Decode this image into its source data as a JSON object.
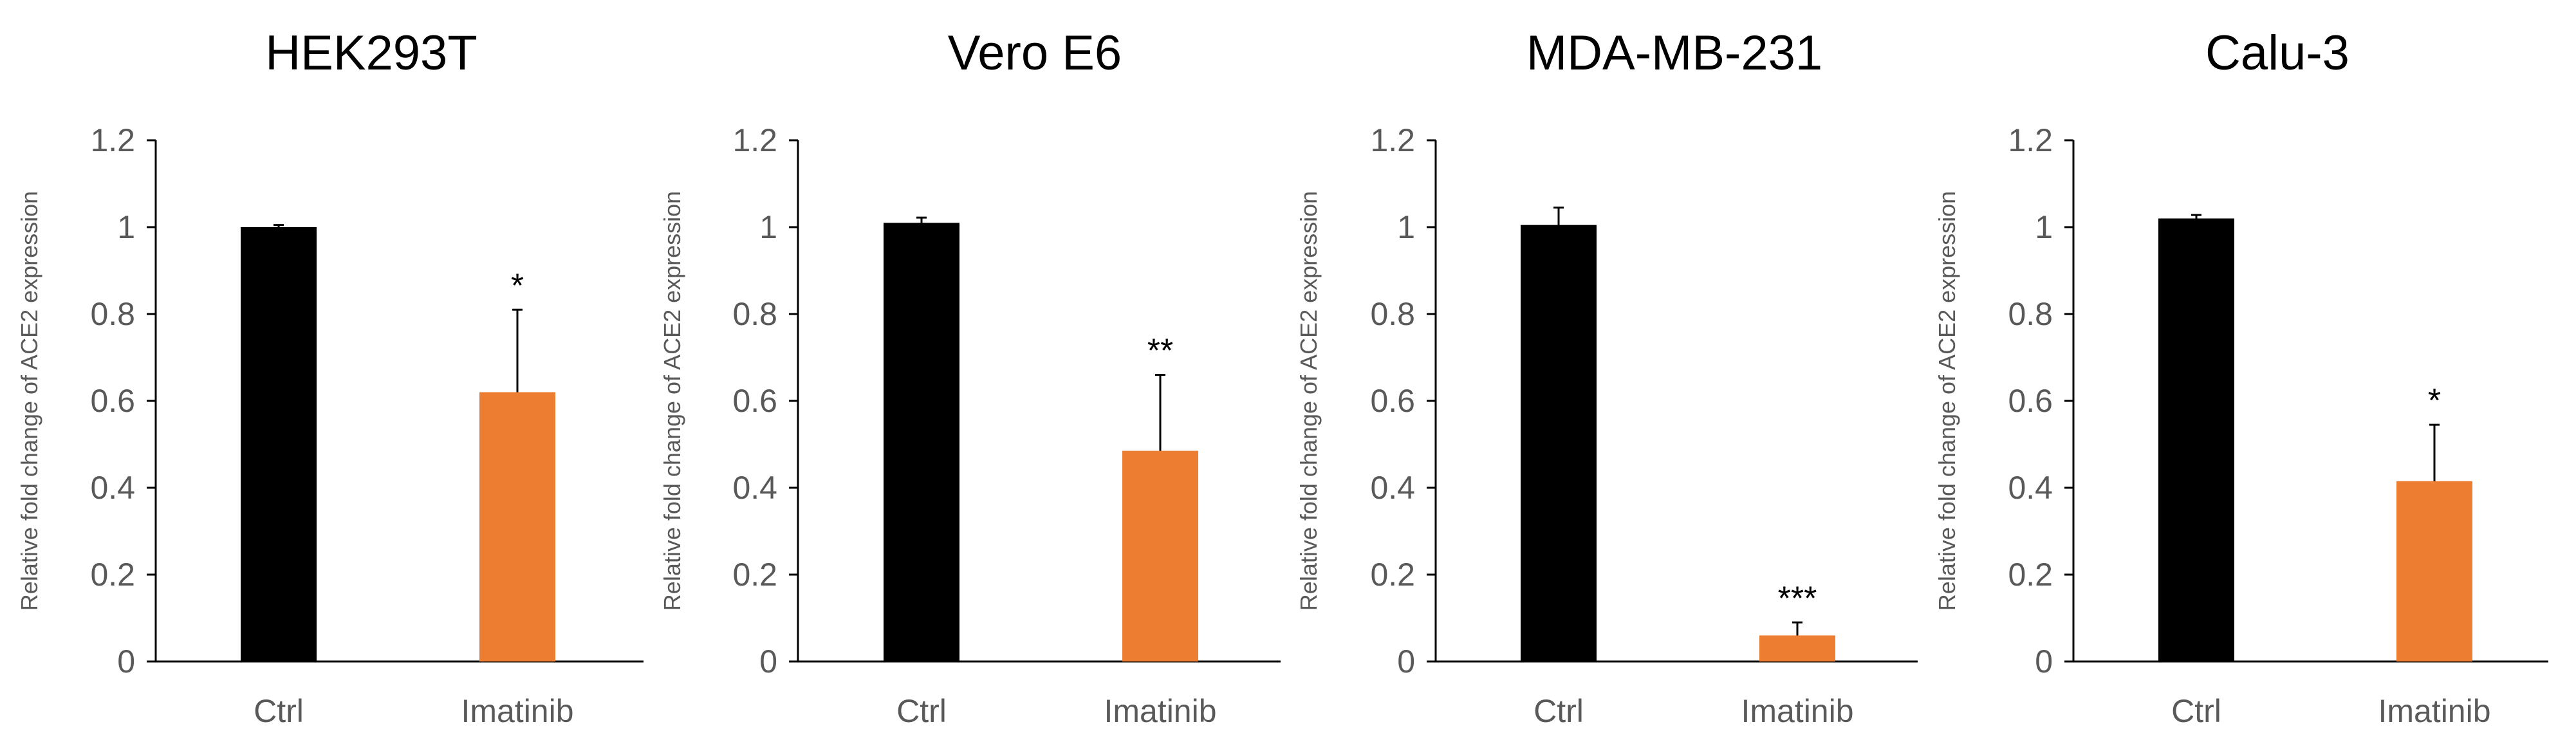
{
  "chart_data": [
    {
      "type": "bar",
      "title": "HEK293T",
      "ylabel": "Relative fold change of ACE2 expression",
      "xlabel": "",
      "ylim": [
        0,
        1.2
      ],
      "yticks": [
        "0",
        "0.2",
        "0.4",
        "0.6",
        "0.8",
        "1",
        "1.2"
      ],
      "categories": [
        "Ctrl",
        "Imatinib"
      ],
      "values": [
        1.0,
        0.62
      ],
      "errors": [
        0.005,
        0.19
      ],
      "colors": [
        "#000000",
        "#ED7D31"
      ],
      "annotations": [
        "",
        "*"
      ]
    },
    {
      "type": "bar",
      "title": "Vero E6",
      "ylabel": "Relative fold change of ACE2 expression",
      "xlabel": "",
      "ylim": [
        0,
        1.2
      ],
      "yticks": [
        "0",
        "0.2",
        "0.4",
        "0.6",
        "0.8",
        "1",
        "1.2"
      ],
      "categories": [
        "Ctrl",
        "Imatinib"
      ],
      "values": [
        1.01,
        0.485
      ],
      "errors": [
        0.012,
        0.175
      ],
      "colors": [
        "#000000",
        "#ED7D31"
      ],
      "annotations": [
        "",
        "**"
      ]
    },
    {
      "type": "bar",
      "title": "MDA-MB-231",
      "ylabel": "Relative fold change of ACE2 expression",
      "xlabel": "",
      "ylim": [
        0,
        1.2
      ],
      "yticks": [
        "0",
        "0.2",
        "0.4",
        "0.6",
        "0.8",
        "1",
        "1.2"
      ],
      "categories": [
        "Ctrl",
        "Imatinib"
      ],
      "values": [
        1.005,
        0.06
      ],
      "errors": [
        0.04,
        0.03
      ],
      "colors": [
        "#000000",
        "#ED7D31"
      ],
      "annotations": [
        "",
        "***"
      ]
    },
    {
      "type": "bar",
      "title": "Calu-3",
      "ylabel": "Relative fold change of ACE2 expression",
      "xlabel": "",
      "ylim": [
        0,
        1.2
      ],
      "yticks": [
        "0",
        "0.2",
        "0.4",
        "0.6",
        "0.8",
        "1",
        "1.2"
      ],
      "categories": [
        "Ctrl",
        "Imatinib"
      ],
      "values": [
        1.02,
        0.415
      ],
      "errors": [
        0.008,
        0.13
      ],
      "colors": [
        "#000000",
        "#ED7D31"
      ],
      "annotations": [
        "",
        "*"
      ]
    }
  ],
  "colors": {
    "axis": "#000000",
    "tick_text": "#595959"
  }
}
